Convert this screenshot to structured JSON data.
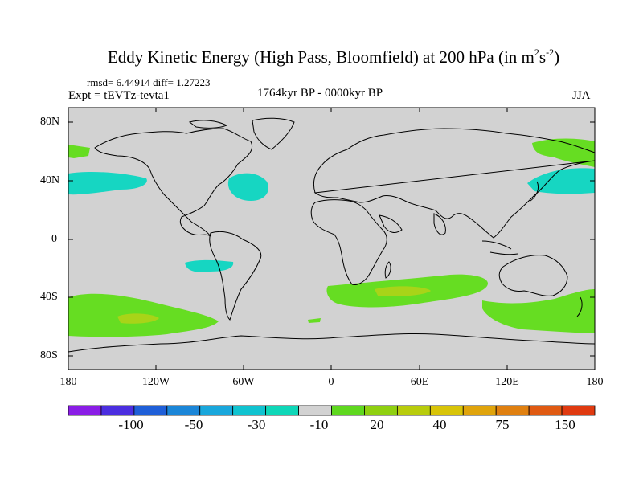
{
  "title": {
    "main": "Eddy Kinetic Energy (High Pass, Bloomfield) at 200 hPa (in m",
    "sup1": "2",
    "mid": "s",
    "sup2": "-2",
    "close": ")"
  },
  "stats": "rmsd= 6.44914 diff= 1.27223",
  "experiment": "Expt = tEVTz-tevta1",
  "period": "1764kyr BP - 0000kyr BP",
  "season": "JJA",
  "lat_labels": [
    "80N",
    "40N",
    "0",
    "40S",
    "80S"
  ],
  "lon_labels": [
    "180",
    "120W",
    "60W",
    "0",
    "60E",
    "120E",
    "180"
  ],
  "colorbar": {
    "labels": [
      "-100",
      "-50",
      "-30",
      "-10",
      "20",
      "40",
      "75",
      "150"
    ],
    "colors": [
      "#8a1de6",
      "#4b2ee0",
      "#1f5fd8",
      "#1b86d8",
      "#19a7dc",
      "#10c3d0",
      "#0ed7b8",
      "#d2d2d2",
      "#5fd81f",
      "#8fd010",
      "#b8cc0c",
      "#d8c408",
      "#e0a40c",
      "#e08010",
      "#e05a12",
      "#e03a10"
    ]
  },
  "field_colors": {
    "land_line": "#000000",
    "background": "#d2d2d2",
    "minus10": "#16d6c2",
    "plus20": "#66dd22",
    "plus40": "#a8d418"
  }
}
